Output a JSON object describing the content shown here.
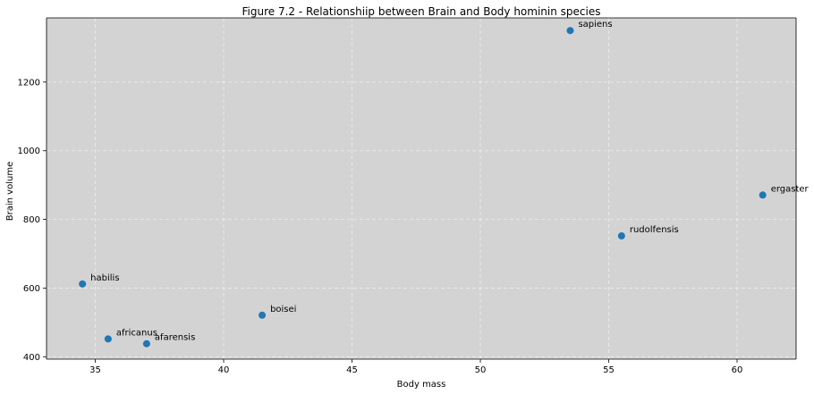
{
  "chart_data": {
    "type": "scatter",
    "title": "Figure 7.2 - Relationshiip between Brain and Body hominin species",
    "xlabel": "Body mass",
    "ylabel": "Brain volume",
    "xlim": [
      33.1,
      62.3
    ],
    "ylim": [
      393,
      1387
    ],
    "x_ticks": [
      35,
      40,
      45,
      50,
      55,
      60
    ],
    "y_ticks": [
      400,
      600,
      800,
      1000,
      1200
    ],
    "grid": true,
    "grid_style": "dashed",
    "background_color": "#d3d3d3",
    "point_color": "#1f77b4",
    "points": [
      {
        "label": "afarensis",
        "x": 37.0,
        "y": 438
      },
      {
        "label": "africanus",
        "x": 35.5,
        "y": 452
      },
      {
        "label": "habilis",
        "x": 34.5,
        "y": 612
      },
      {
        "label": "boisei",
        "x": 41.5,
        "y": 521
      },
      {
        "label": "rudolfensis",
        "x": 55.5,
        "y": 752
      },
      {
        "label": "ergaster",
        "x": 61.0,
        "y": 871
      },
      {
        "label": "sapiens",
        "x": 53.5,
        "y": 1350
      }
    ]
  }
}
